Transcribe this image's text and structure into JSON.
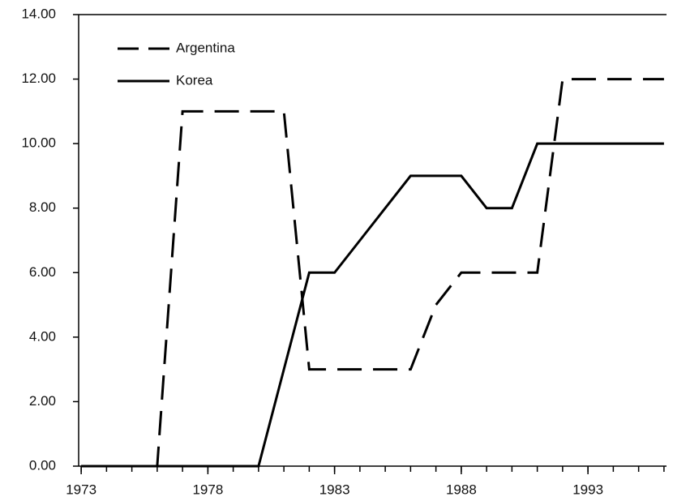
{
  "chart_data": {
    "type": "line",
    "x": [
      1973,
      1974,
      1975,
      1976,
      1977,
      1978,
      1979,
      1980,
      1981,
      1982,
      1983,
      1984,
      1985,
      1986,
      1987,
      1988,
      1989,
      1990,
      1991,
      1992,
      1993,
      1994,
      1995,
      1996
    ],
    "series": [
      {
        "name": "Argentina",
        "color": "#000000",
        "dashed": true,
        "values": [
          0,
          0,
          0,
          0,
          11,
          11,
          11,
          11,
          11,
          3,
          3,
          3,
          3,
          3,
          5,
          6,
          6,
          6,
          6,
          12,
          12,
          12,
          12,
          12
        ]
      },
      {
        "name": "Korea",
        "color": "#000000",
        "dashed": false,
        "values": [
          0,
          0,
          0,
          0,
          0,
          0,
          0,
          0,
          3,
          6,
          6,
          7,
          8,
          9,
          9,
          9,
          8,
          8,
          10,
          10,
          10,
          10,
          10,
          10
        ]
      }
    ],
    "xlim": [
      1972.9,
      1996.1
    ],
    "xticks": [
      1973,
      1978,
      1983,
      1988,
      1993
    ],
    "ylim": [
      0,
      14
    ],
    "yticks": [
      {
        "value": 0,
        "label": "0.00"
      },
      {
        "value": 2,
        "label": "2.00"
      },
      {
        "value": 4,
        "label": "4.00"
      },
      {
        "value": 6,
        "label": "6.00"
      },
      {
        "value": 8,
        "label": "8.00"
      },
      {
        "value": 10,
        "label": "10.00"
      },
      {
        "value": 12,
        "label": "12.00"
      },
      {
        "value": 14,
        "label": "14.00"
      }
    ],
    "legend": "upper-left"
  }
}
